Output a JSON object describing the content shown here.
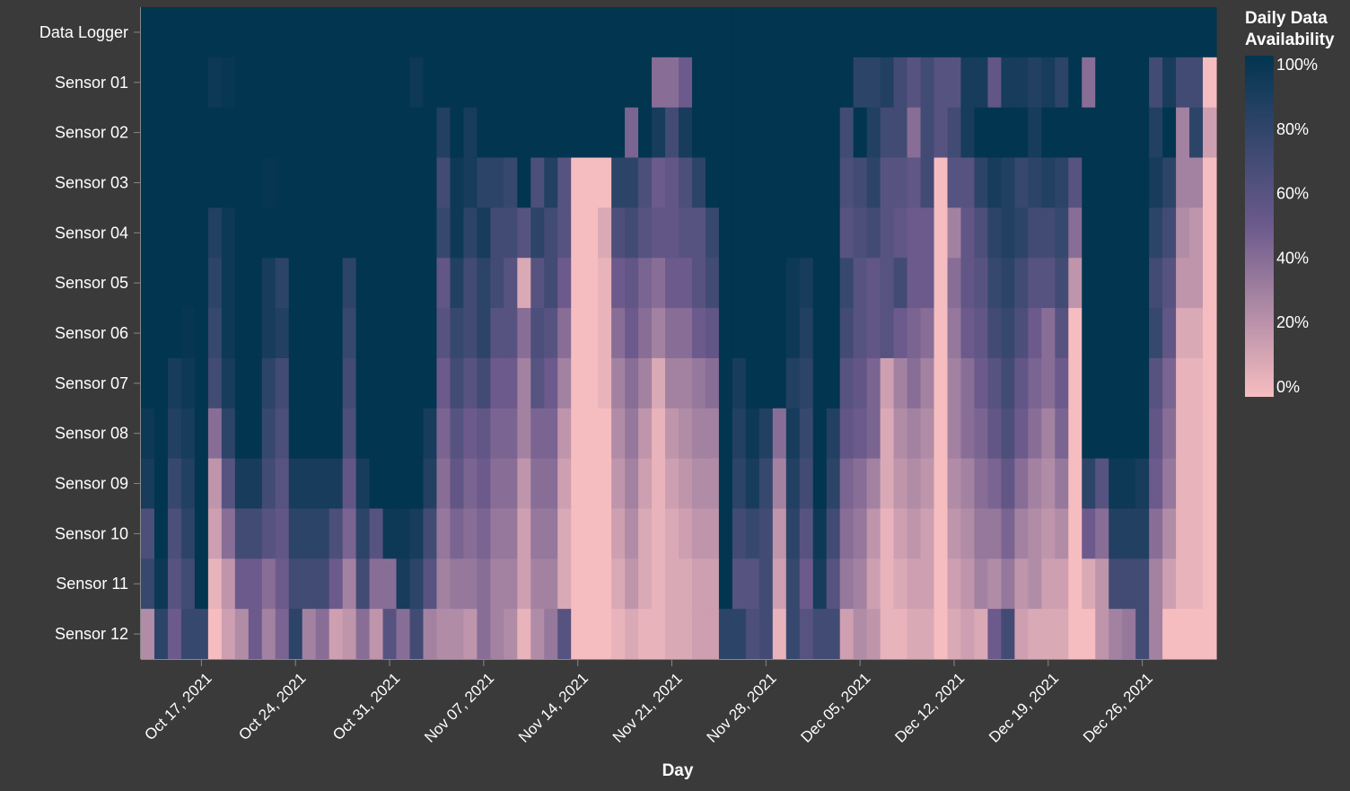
{
  "chart_data": {
    "type": "heatmap",
    "title": "",
    "xlabel": "Day",
    "ylabel": "",
    "x_start": "2021-10-13",
    "x_end": "2021-12-31",
    "x_ticks": [
      "Oct 17, 2021",
      "Oct 24, 2021",
      "Oct 31, 2021",
      "Nov 07, 2021",
      "Nov 14, 2021",
      "Nov 21, 2021",
      "Nov 28, 2021",
      "Dec 05, 2021",
      "Dec 12, 2021",
      "Dec 19, 2021",
      "Dec 26, 2021"
    ],
    "x_tick_dates": [
      "2021-10-17",
      "2021-10-24",
      "2021-10-31",
      "2021-11-07",
      "2021-11-14",
      "2021-11-21",
      "2021-11-28",
      "2021-12-05",
      "2021-12-12",
      "2021-12-19",
      "2021-12-26"
    ],
    "rows": [
      "Data Logger",
      "Sensor 01",
      "Sensor 02",
      "Sensor 03",
      "Sensor 04",
      "Sensor 05",
      "Sensor 06",
      "Sensor 07",
      "Sensor 08",
      "Sensor 09",
      "Sensor 10",
      "Sensor 11",
      "Sensor 12"
    ],
    "legend": {
      "title_line1": "Daily Data",
      "title_line2": "Availability",
      "ticks": [
        "100%",
        "80%",
        "60%",
        "40%",
        "20%",
        "0%"
      ],
      "tick_values": [
        1.0,
        0.8,
        0.6,
        0.4,
        0.2,
        0.0
      ]
    },
    "color_scale": {
      "high": "#023550",
      "mid": "#6c5a8c",
      "low": "#f6bdc0"
    },
    "availability_pct": [
      [
        100,
        100,
        100,
        100,
        100,
        100,
        100,
        100,
        100,
        100,
        100,
        100,
        100,
        100,
        100,
        100,
        100,
        100,
        100,
        100,
        100,
        100,
        100,
        100,
        100,
        100,
        100,
        100,
        100,
        100,
        100,
        100,
        100,
        100,
        100,
        100,
        100,
        100,
        100,
        100,
        100,
        100,
        100,
        100,
        100,
        100,
        100,
        100,
        100,
        100,
        100,
        100,
        100,
        100,
        100,
        100,
        100,
        100,
        100,
        100,
        100,
        100,
        100,
        100,
        100,
        100,
        100,
        100,
        100,
        100,
        100,
        100,
        100,
        100,
        100,
        100,
        100,
        100,
        100,
        100
      ],
      [
        100,
        100,
        100,
        100,
        100,
        95,
        97,
        100,
        100,
        100,
        100,
        100,
        100,
        100,
        100,
        100,
        100,
        100,
        100,
        100,
        95,
        100,
        100,
        100,
        100,
        100,
        100,
        100,
        100,
        100,
        100,
        100,
        100,
        100,
        100,
        100,
        100,
        100,
        40,
        40,
        50,
        100,
        100,
        100,
        100,
        100,
        100,
        100,
        100,
        100,
        100,
        100,
        100,
        80,
        80,
        85,
        70,
        60,
        70,
        60,
        60,
        90,
        90,
        55,
        90,
        90,
        85,
        90,
        80,
        100,
        40,
        100,
        100,
        100,
        100,
        70,
        90,
        70,
        70,
        0
      ],
      [
        100,
        100,
        100,
        100,
        100,
        100,
        100,
        100,
        100,
        100,
        100,
        100,
        100,
        100,
        100,
        100,
        100,
        100,
        100,
        100,
        100,
        100,
        85,
        100,
        90,
        100,
        100,
        100,
        100,
        100,
        100,
        100,
        100,
        100,
        100,
        100,
        45,
        100,
        90,
        70,
        90,
        100,
        100,
        100,
        100,
        100,
        100,
        100,
        100,
        100,
        100,
        100,
        70,
        100,
        85,
        70,
        70,
        40,
        70,
        60,
        70,
        90,
        100,
        100,
        100,
        100,
        90,
        100,
        100,
        100,
        100,
        100,
        100,
        100,
        100,
        85,
        100,
        30,
        80,
        15
      ],
      [
        100,
        100,
        100,
        100,
        100,
        100,
        100,
        100,
        100,
        98,
        100,
        100,
        100,
        100,
        100,
        100,
        100,
        100,
        100,
        100,
        100,
        100,
        70,
        95,
        90,
        80,
        80,
        75,
        100,
        65,
        85,
        60,
        0,
        0,
        0,
        80,
        80,
        65,
        50,
        55,
        65,
        80,
        100,
        100,
        100,
        100,
        100,
        100,
        100,
        100,
        100,
        100,
        65,
        70,
        80,
        60,
        60,
        55,
        70,
        0,
        60,
        60,
        80,
        90,
        85,
        75,
        80,
        85,
        80,
        60,
        100,
        100,
        100,
        100,
        100,
        90,
        80,
        30,
        30,
        0
      ],
      [
        100,
        100,
        100,
        100,
        100,
        85,
        95,
        100,
        100,
        100,
        100,
        100,
        100,
        100,
        100,
        100,
        100,
        100,
        100,
        100,
        100,
        100,
        75,
        95,
        80,
        90,
        70,
        70,
        60,
        80,
        70,
        60,
        0,
        0,
        10,
        65,
        70,
        60,
        55,
        55,
        60,
        60,
        75,
        100,
        100,
        100,
        100,
        100,
        100,
        100,
        100,
        100,
        60,
        65,
        70,
        60,
        55,
        50,
        50,
        0,
        30,
        55,
        65,
        80,
        85,
        80,
        70,
        70,
        75,
        40,
        100,
        100,
        100,
        100,
        100,
        80,
        70,
        25,
        20,
        0
      ],
      [
        100,
        100,
        100,
        100,
        100,
        80,
        95,
        100,
        100,
        90,
        80,
        100,
        100,
        100,
        100,
        80,
        100,
        100,
        100,
        100,
        100,
        100,
        55,
        85,
        70,
        80,
        70,
        60,
        10,
        60,
        70,
        50,
        0,
        0,
        5,
        50,
        55,
        45,
        40,
        50,
        50,
        60,
        70,
        100,
        100,
        100,
        100,
        100,
        95,
        90,
        100,
        100,
        75,
        60,
        55,
        60,
        70,
        50,
        50,
        0,
        40,
        55,
        60,
        75,
        80,
        70,
        60,
        60,
        70,
        20,
        100,
        100,
        100,
        100,
        100,
        70,
        60,
        20,
        20,
        0
      ],
      [
        100,
        100,
        100,
        98,
        100,
        75,
        95,
        100,
        100,
        90,
        85,
        100,
        100,
        100,
        100,
        75,
        100,
        100,
        100,
        100,
        100,
        100,
        60,
        75,
        70,
        80,
        60,
        60,
        40,
        65,
        60,
        40,
        0,
        0,
        5,
        40,
        50,
        40,
        30,
        40,
        40,
        50,
        55,
        100,
        100,
        100,
        100,
        100,
        95,
        85,
        100,
        100,
        70,
        60,
        55,
        60,
        50,
        45,
        40,
        0,
        35,
        50,
        55,
        70,
        75,
        65,
        50,
        40,
        60,
        0,
        100,
        100,
        100,
        100,
        100,
        75,
        55,
        10,
        10,
        0
      ],
      [
        100,
        100,
        90,
        95,
        100,
        70,
        90,
        100,
        100,
        80,
        70,
        100,
        100,
        100,
        100,
        70,
        100,
        100,
        100,
        100,
        100,
        100,
        50,
        70,
        60,
        70,
        50,
        50,
        30,
        60,
        50,
        30,
        0,
        0,
        5,
        30,
        40,
        30,
        10,
        30,
        30,
        35,
        40,
        100,
        90,
        100,
        100,
        100,
        85,
        80,
        100,
        100,
        60,
        55,
        45,
        15,
        30,
        40,
        30,
        0,
        30,
        40,
        50,
        60,
        70,
        55,
        45,
        40,
        50,
        0,
        100,
        100,
        100,
        100,
        100,
        60,
        45,
        5,
        5,
        0
      ],
      [
        95,
        100,
        85,
        90,
        100,
        40,
        80,
        100,
        100,
        75,
        65,
        100,
        100,
        100,
        100,
        65,
        100,
        100,
        100,
        100,
        100,
        90,
        45,
        60,
        50,
        55,
        45,
        45,
        30,
        45,
        45,
        20,
        0,
        0,
        0,
        25,
        35,
        20,
        5,
        20,
        25,
        30,
        30,
        100,
        85,
        95,
        85,
        40,
        90,
        75,
        100,
        85,
        55,
        50,
        45,
        10,
        25,
        30,
        25,
        0,
        30,
        40,
        45,
        55,
        65,
        50,
        40,
        30,
        45,
        0,
        100,
        100,
        100,
        100,
        100,
        55,
        40,
        5,
        5,
        0
      ],
      [
        90,
        100,
        75,
        85,
        100,
        20,
        60,
        90,
        90,
        70,
        60,
        90,
        90,
        90,
        90,
        55,
        90,
        100,
        100,
        100,
        100,
        85,
        40,
        55,
        45,
        50,
        40,
        40,
        20,
        40,
        40,
        15,
        0,
        0,
        0,
        20,
        30,
        15,
        5,
        15,
        20,
        25,
        25,
        100,
        80,
        90,
        75,
        30,
        85,
        70,
        100,
        80,
        45,
        40,
        30,
        10,
        20,
        25,
        20,
        0,
        25,
        30,
        40,
        45,
        55,
        40,
        30,
        25,
        35,
        0,
        80,
        60,
        95,
        95,
        90,
        50,
        35,
        5,
        5,
        0
      ],
      [
        65,
        100,
        65,
        80,
        100,
        15,
        40,
        70,
        70,
        60,
        55,
        80,
        80,
        80,
        65,
        45,
        80,
        60,
        95,
        95,
        90,
        70,
        35,
        45,
        40,
        45,
        35,
        35,
        15,
        35,
        35,
        10,
        0,
        0,
        0,
        15,
        25,
        10,
        5,
        10,
        15,
        20,
        20,
        100,
        70,
        75,
        70,
        20,
        80,
        60,
        95,
        70,
        40,
        35,
        20,
        5,
        15,
        20,
        15,
        0,
        20,
        25,
        35,
        35,
        45,
        30,
        25,
        20,
        25,
        0,
        50,
        40,
        85,
        85,
        85,
        40,
        25,
        5,
        5,
        0
      ],
      [
        75,
        95,
        60,
        70,
        100,
        5,
        20,
        50,
        50,
        40,
        50,
        70,
        70,
        70,
        50,
        30,
        70,
        40,
        40,
        90,
        80,
        60,
        30,
        35,
        35,
        40,
        30,
        30,
        15,
        30,
        30,
        10,
        0,
        0,
        0,
        10,
        20,
        10,
        5,
        10,
        10,
        15,
        15,
        100,
        60,
        60,
        70,
        15,
        75,
        50,
        90,
        60,
        35,
        30,
        15,
        5,
        10,
        15,
        15,
        0,
        15,
        20,
        30,
        25,
        35,
        20,
        25,
        15,
        15,
        0,
        10,
        20,
        70,
        70,
        70,
        30,
        15,
        5,
        5,
        0
      ],
      [
        25,
        80,
        50,
        75,
        75,
        0,
        15,
        25,
        50,
        30,
        45,
        80,
        30,
        40,
        15,
        20,
        40,
        20,
        60,
        40,
        70,
        30,
        25,
        25,
        20,
        40,
        30,
        25,
        5,
        25,
        35,
        60,
        0,
        0,
        0,
        5,
        10,
        5,
        5,
        10,
        10,
        15,
        15,
        80,
        80,
        65,
        70,
        5,
        75,
        60,
        70,
        70,
        15,
        25,
        20,
        5,
        5,
        10,
        10,
        0,
        10,
        15,
        10,
        50,
        70,
        15,
        10,
        10,
        10,
        0,
        0,
        20,
        30,
        35,
        70,
        30,
        0,
        0,
        0,
        0
      ]
    ]
  }
}
